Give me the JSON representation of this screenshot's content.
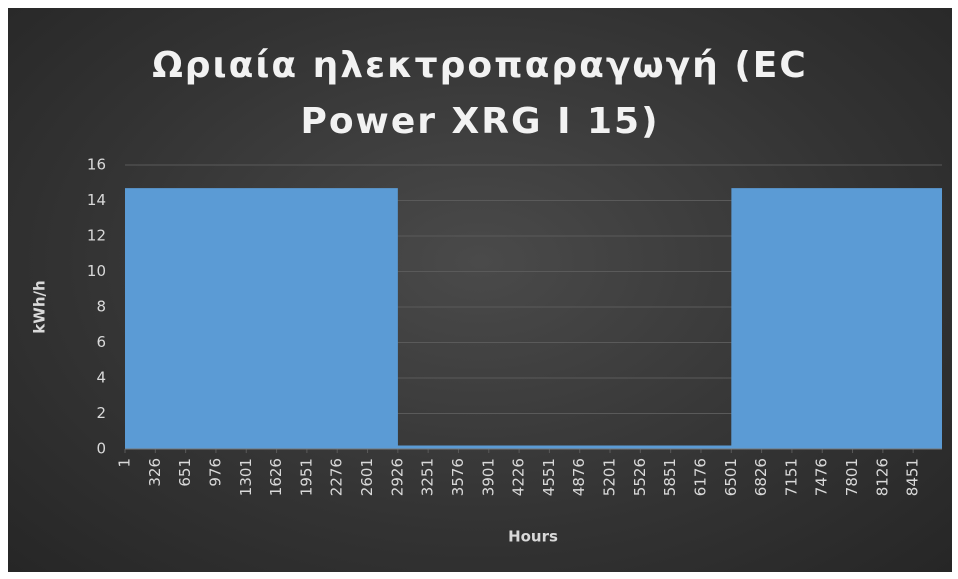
{
  "chart_data": {
    "type": "area",
    "title": "Ωριαία ηλεκτροπαραγωγή (EC Power XRG I 15)",
    "x_label": "Hours",
    "y_label": "kWh/h",
    "x": [
      1,
      2926,
      2927,
      6501,
      6502,
      8760
    ],
    "values": [
      14.7,
      14.7,
      0.2,
      0.2,
      14.7,
      14.7
    ],
    "color": "#5b9bd5",
    "xlim": [
      1,
      8760
    ],
    "xticks": [
      1,
      326,
      651,
      976,
      1301,
      1626,
      1951,
      2276,
      2601,
      2926,
      3251,
      3576,
      3901,
      4226,
      4551,
      4876,
      5201,
      5526,
      5851,
      6176,
      6501,
      6826,
      7151,
      7476,
      7801,
      8126,
      8451
    ],
    "ylim": [
      0,
      16
    ],
    "yticks": [
      0,
      2,
      4,
      6,
      8,
      10,
      12,
      14,
      16
    ],
    "grid": true
  }
}
